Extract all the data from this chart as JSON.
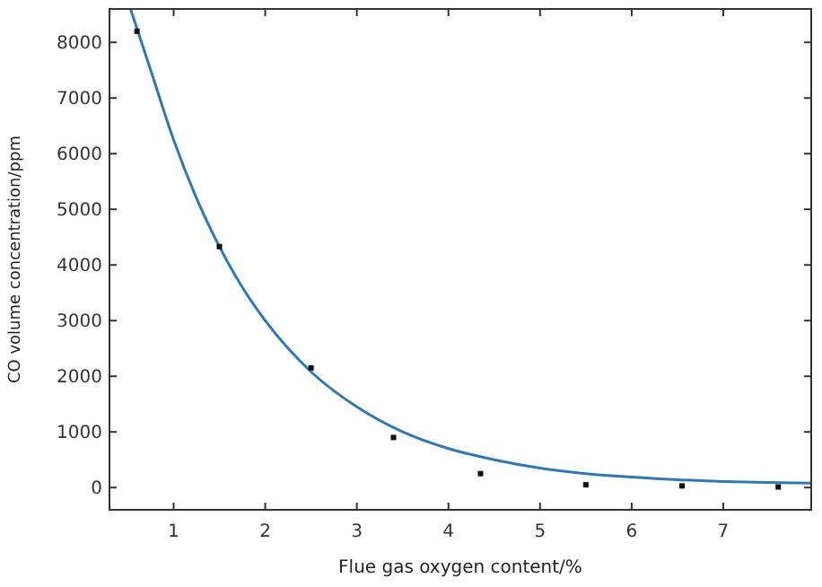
{
  "chart_data": {
    "type": "scatter",
    "xlabel": "Flue gas oxygen content/%",
    "ylabel": "CO volume concentration/ppm",
    "xlim": [
      0.3,
      7.96
    ],
    "xticks": [
      1,
      2,
      3,
      4,
      5,
      6,
      7
    ],
    "ylim": [
      -400,
      8600
    ],
    "yticks": [
      0,
      1000,
      2000,
      3000,
      4000,
      5000,
      6000,
      7000,
      8000
    ],
    "grid": false,
    "marker": "square",
    "series": [
      {
        "color": "#111111",
        "x": [
          0.6,
          1.5,
          2.5,
          3.4,
          4.35,
          5.5,
          6.55,
          7.6
        ],
        "values": [
          8200,
          4330,
          2150,
          900,
          250,
          50,
          30,
          10
        ]
      },
      {
        "type": "line",
        "color": "#2e78b8",
        "marker": "none",
        "line_style": "solid",
        "x": [
          0.53,
          0.75,
          1,
          1.25,
          1.5,
          1.75,
          2,
          2.5,
          3,
          3.5,
          4,
          4.5,
          5,
          5.5,
          6,
          6.5,
          7,
          7.5,
          7.96
        ],
        "values": [
          8600,
          7500,
          6250,
          5200,
          4330,
          3600,
          3000,
          2080,
          1450,
          1000,
          700,
          500,
          350,
          250,
          190,
          140,
          110,
          90,
          80
        ]
      }
    ]
  }
}
